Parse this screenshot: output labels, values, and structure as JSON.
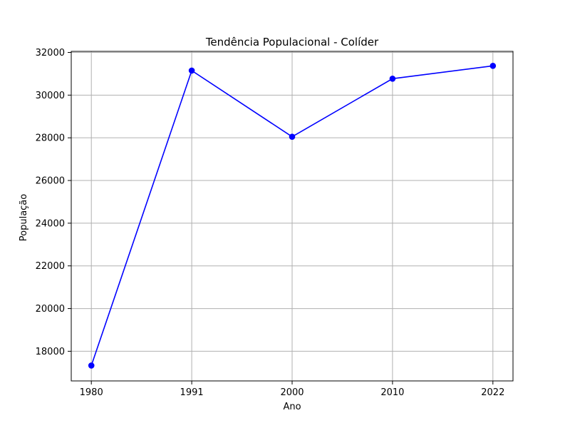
{
  "chart_data": {
    "type": "line",
    "title": "Tendência Populacional - Colíder",
    "xlabel": "Ano",
    "ylabel": "População",
    "categories": [
      "1980",
      "1991",
      "2000",
      "2010",
      "2022"
    ],
    "series": [
      {
        "values": [
          17330,
          31150,
          28050,
          30770,
          31370
        ],
        "color": "#0000ff"
      }
    ],
    "yticks": [
      18000,
      20000,
      22000,
      24000,
      26000,
      28000,
      30000,
      32000
    ],
    "ylim": [
      16610,
      32050
    ],
    "grid": true
  }
}
